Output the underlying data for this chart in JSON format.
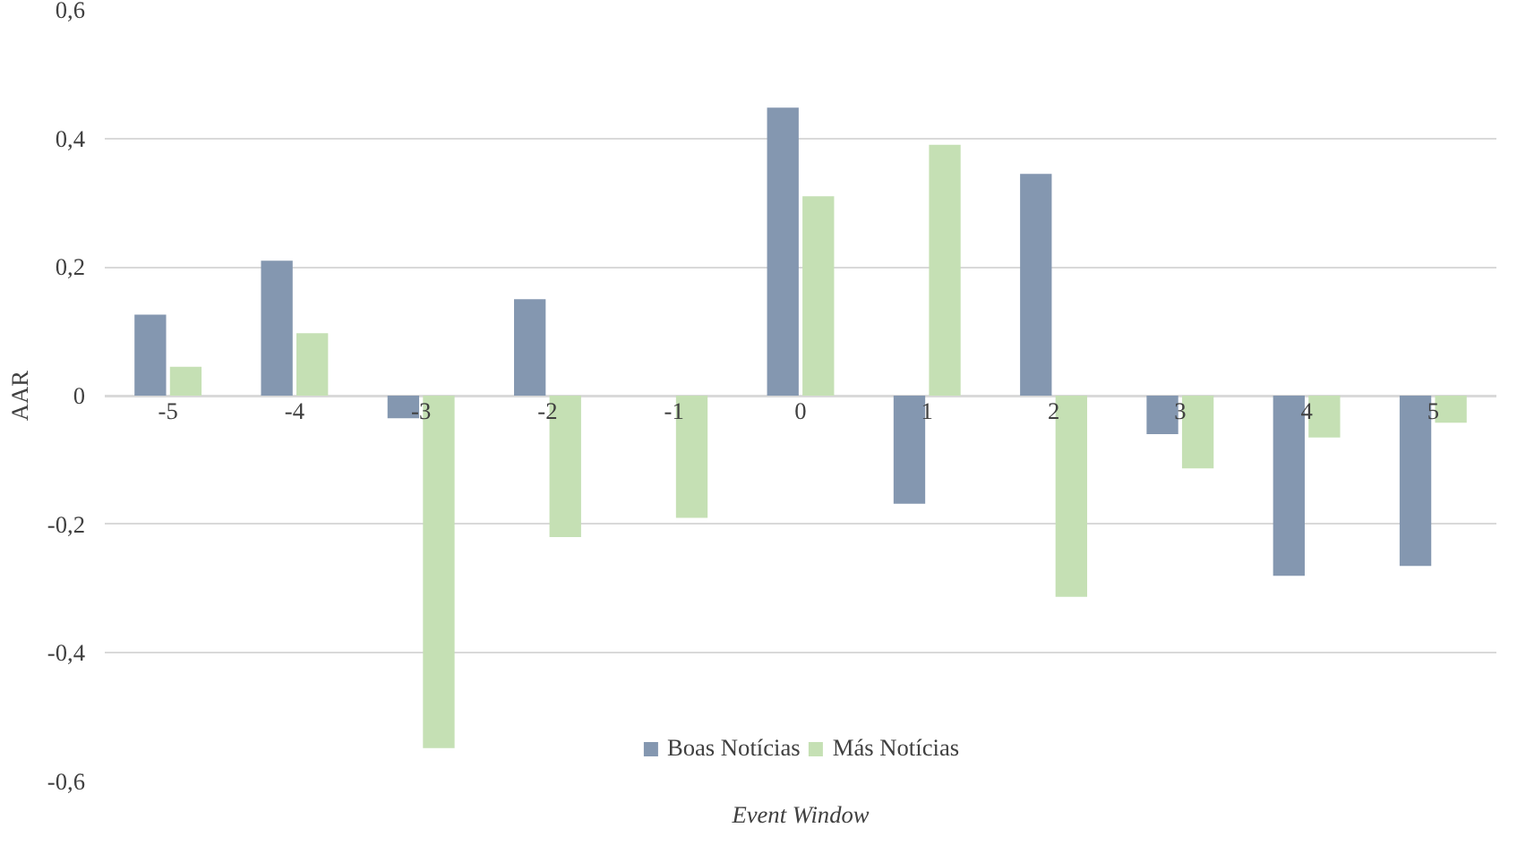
{
  "chart_data": {
    "type": "bar",
    "xlabel": "Event Window",
    "ylabel": "AAR",
    "categories": [
      "-5",
      "-4",
      "-3",
      "-2",
      "-1",
      "0",
      "1",
      "2",
      "3",
      "4",
      "5"
    ],
    "series": [
      {
        "name": "Boas Notícias",
        "color": "#8497b0",
        "values": [
          0.126,
          0.21,
          -0.035,
          0.15,
          null,
          0.448,
          -0.168,
          0.345,
          -0.06,
          -0.28,
          -0.265
        ]
      },
      {
        "name": "Más Notícias",
        "color": "#c5e0b4",
        "values": [
          0.045,
          0.097,
          -0.548,
          -0.22,
          -0.19,
          0.31,
          0.39,
          -0.313,
          -0.113,
          -0.065,
          -0.042
        ]
      }
    ],
    "ylim": [
      -0.6,
      0.6
    ],
    "yticks": [
      {
        "value": -0.6,
        "label": "-0,6"
      },
      {
        "value": -0.4,
        "label": "-0,4"
      },
      {
        "value": -0.2,
        "label": "-0,2"
      },
      0,
      {
        "value": 0.2,
        "label": "0,2"
      },
      {
        "value": 0.4,
        "label": "0,4"
      },
      {
        "value": 0.6,
        "label": "0,6"
      }
    ],
    "grid": "y",
    "legend": "bottom"
  }
}
